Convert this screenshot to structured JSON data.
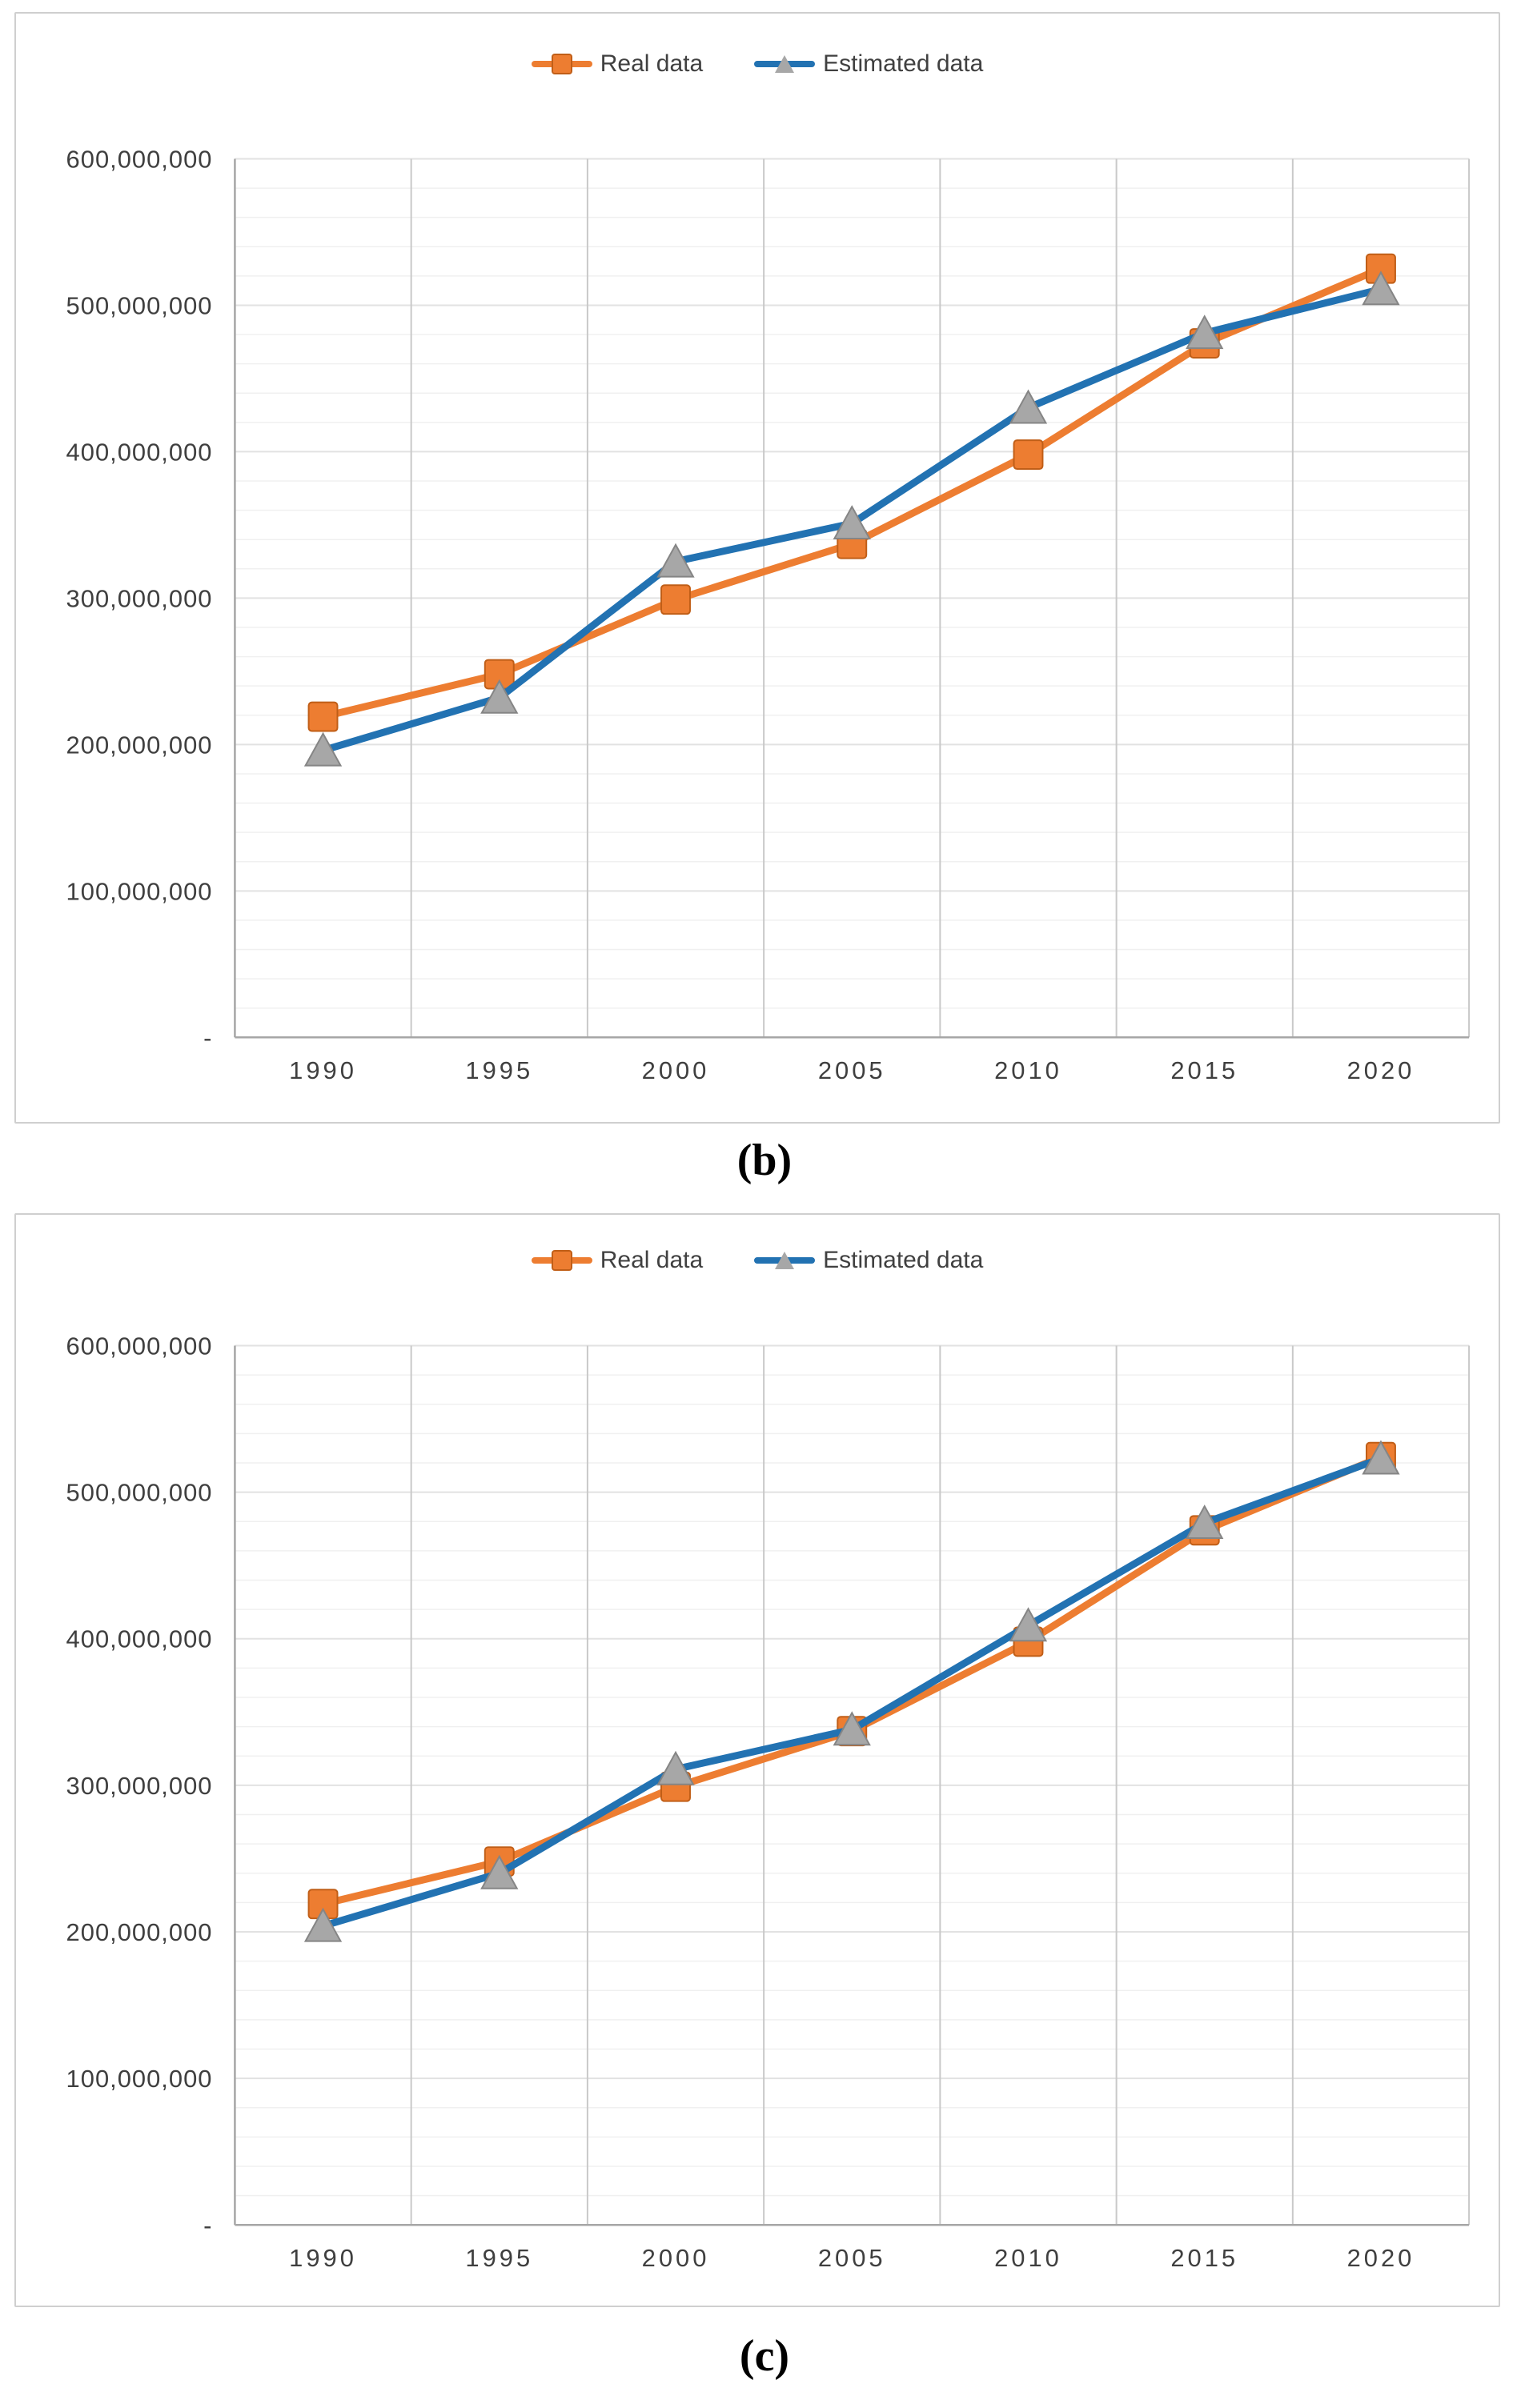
{
  "chart_data": [
    {
      "id": "chart-b",
      "type": "line",
      "caption": "(b)",
      "categories": [
        "1990",
        "1995",
        "2000",
        "2005",
        "2010",
        "2015",
        "2020"
      ],
      "series": [
        {
          "name": "Real data",
          "color": "#ED7D31",
          "marker": "square",
          "marker_fill": "#ED7D31",
          "marker_stroke": "#C05E17",
          "values": [
            219000000,
            248000000,
            299000000,
            337000000,
            398000000,
            474000000,
            525000000
          ]
        },
        {
          "name": "Estimated data",
          "color": "#2272B2",
          "marker": "triangle",
          "marker_fill": "#A7A7A7",
          "marker_stroke": "#858585",
          "values": [
            196000000,
            232000000,
            325000000,
            351000000,
            430000000,
            481000000,
            511000000
          ]
        }
      ],
      "xlabel": "",
      "ylabel": "",
      "ylim": [
        0,
        600000000
      ],
      "y_major_step": 100000000,
      "y_minor_step": 20000000,
      "y_tick_labels": [
        "600,000,000",
        "500,000,000",
        "400,000,000",
        "300,000,000",
        "200,000,000",
        "100,000,000",
        "-"
      ],
      "grid": true,
      "legend_position": "top"
    },
    {
      "id": "chart-c",
      "type": "line",
      "caption": "(c)",
      "categories": [
        "1990",
        "1995",
        "2000",
        "2005",
        "2010",
        "2015",
        "2020"
      ],
      "series": [
        {
          "name": "Real data",
          "color": "#ED7D31",
          "marker": "square",
          "marker_fill": "#ED7D31",
          "marker_stroke": "#C05E17",
          "values": [
            219000000,
            248000000,
            299000000,
            337000000,
            398000000,
            474000000,
            524000000
          ]
        },
        {
          "name": "Estimated data",
          "color": "#2272B2",
          "marker": "triangle",
          "marker_fill": "#A7A7A7",
          "marker_stroke": "#858585",
          "values": [
            204000000,
            240000000,
            311000000,
            338000000,
            409000000,
            479000000,
            523000000
          ]
        }
      ],
      "xlabel": "",
      "ylabel": "",
      "ylim": [
        0,
        600000000
      ],
      "y_major_step": 100000000,
      "y_minor_step": 20000000,
      "y_tick_labels": [
        "600,000,000",
        "500,000,000",
        "400,000,000",
        "300,000,000",
        "200,000,000",
        "100,000,000",
        "-"
      ],
      "grid": true,
      "legend_position": "top"
    }
  ],
  "styles": {
    "gridline_minor_color": "#F0F0F0",
    "gridline_major_color": "#E2E2E2",
    "gridline_vertical_color": "#C9C9C9",
    "axis_line_color": "#A6A6A6",
    "tick_label_color": "#3F3F3F"
  }
}
